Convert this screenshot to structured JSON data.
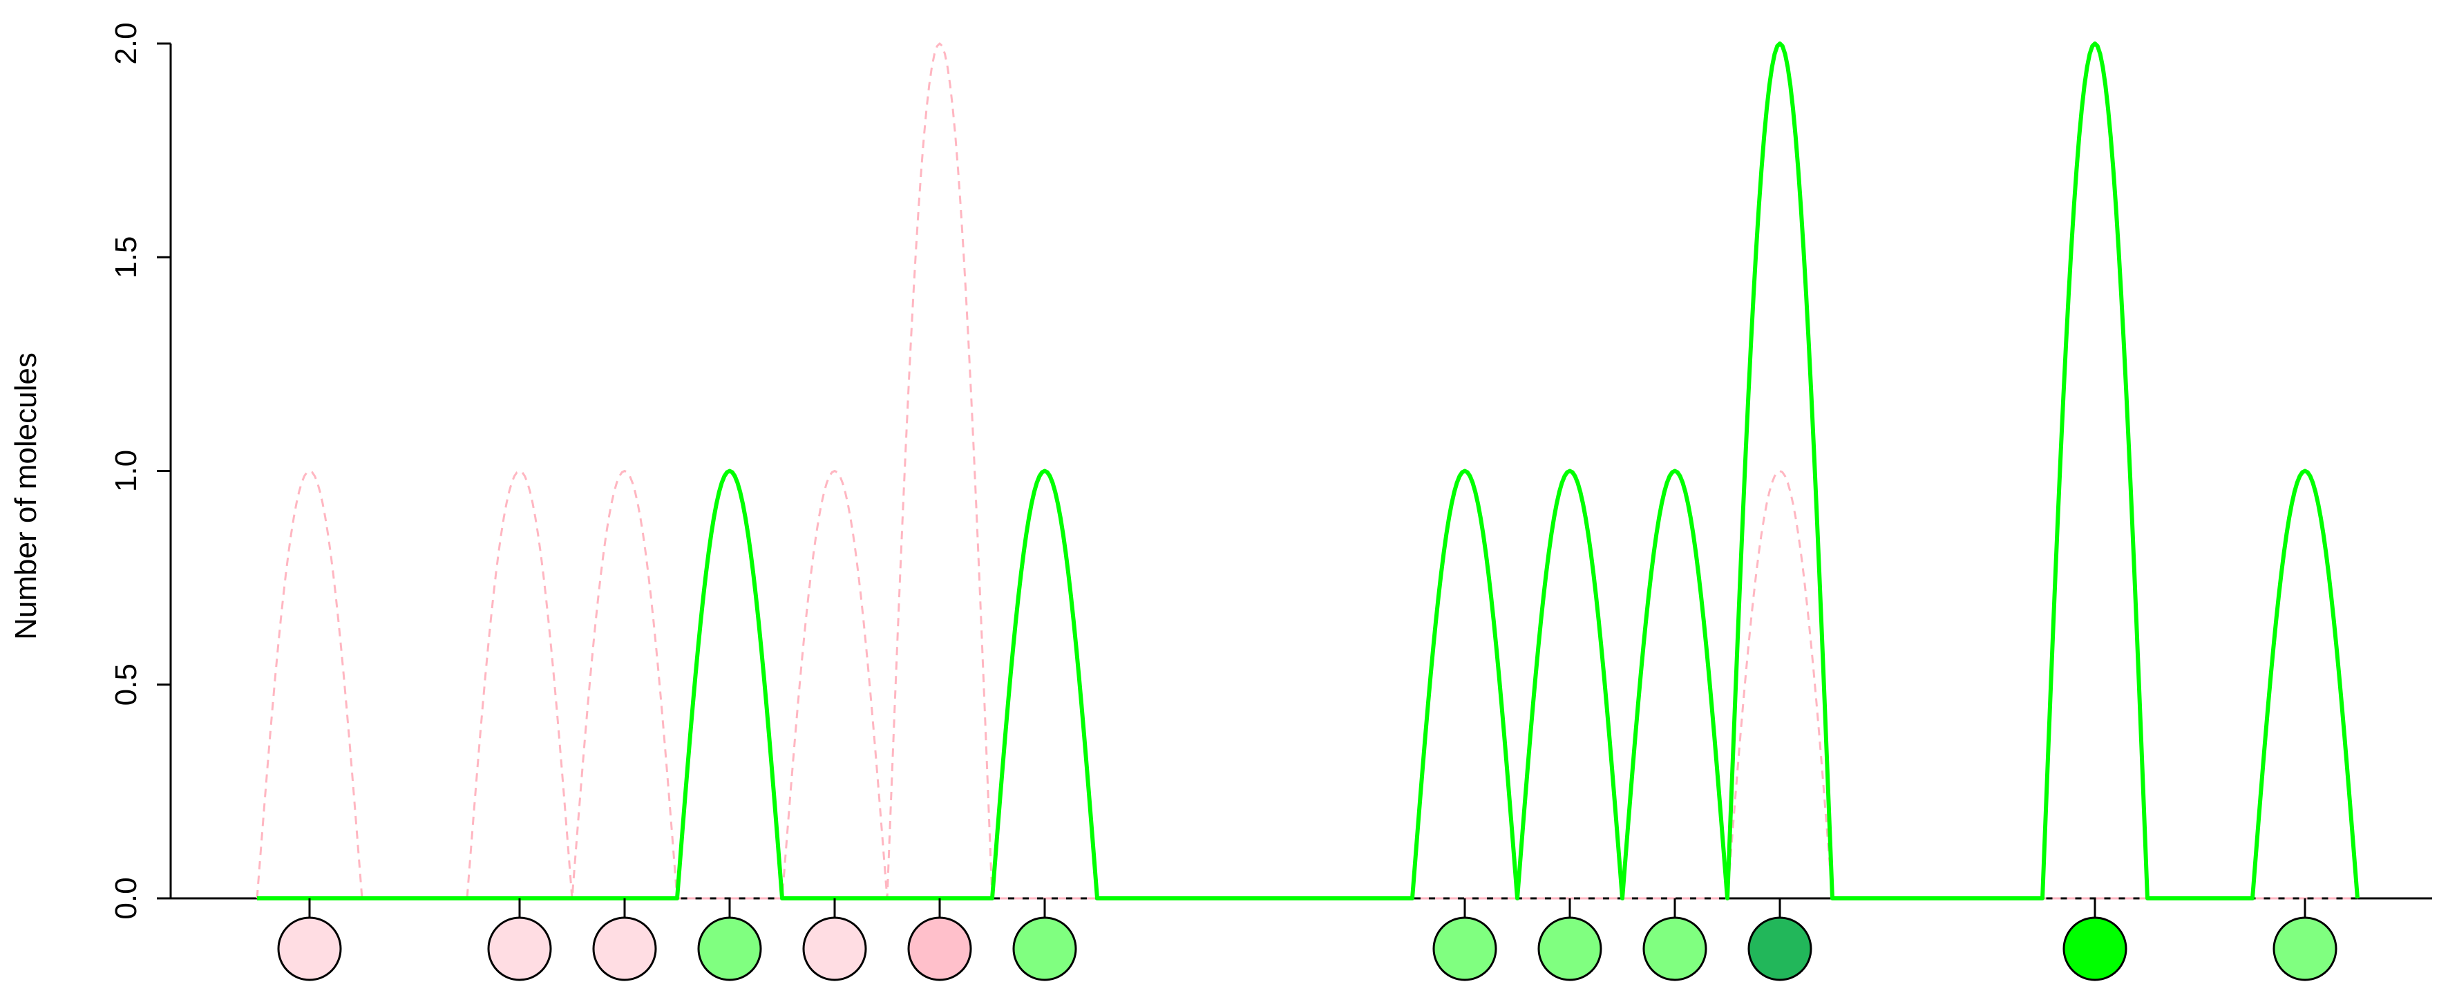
{
  "chart_data": {
    "type": "line",
    "title": "",
    "xlabel": "",
    "ylabel": "Number of molecules",
    "ylim": [
      0,
      2
    ],
    "y_ticks": [
      "0.0",
      "0.5",
      "1.0",
      "1.5",
      "2.0"
    ],
    "xlim": [
      0.5,
      20.5
    ],
    "grid": false,
    "legend": "none",
    "positions": [
      1,
      3,
      4,
      5,
      6,
      7,
      8,
      12,
      13,
      14,
      15,
      18,
      20
    ],
    "series": [
      {
        "style": "solid",
        "color": "#00ff00",
        "values": [
          0,
          0,
          0,
          1,
          0,
          0,
          1,
          1,
          1,
          1,
          2,
          2,
          1
        ]
      },
      {
        "style": "dashed",
        "color": "#ffb6c1",
        "values": [
          1,
          1,
          1,
          0,
          1,
          2,
          0,
          0,
          0,
          0,
          1,
          0,
          0
        ]
      }
    ],
    "markers": [
      {
        "x": 1,
        "color": "#ffdde3"
      },
      {
        "x": 3,
        "color": "#ffdde3"
      },
      {
        "x": 4,
        "color": "#ffdde3"
      },
      {
        "x": 5,
        "color": "#80ff80"
      },
      {
        "x": 6,
        "color": "#ffdde3"
      },
      {
        "x": 7,
        "color": "#ffc0cb"
      },
      {
        "x": 8,
        "color": "#80ff80"
      },
      {
        "x": 12,
        "color": "#80ff80"
      },
      {
        "x": 13,
        "color": "#80ff80"
      },
      {
        "x": 14,
        "color": "#80ff80"
      },
      {
        "x": 15,
        "color": "#22b75a"
      },
      {
        "x": 18,
        "color": "#00ff00"
      },
      {
        "x": 20,
        "color": "#80ff80"
      }
    ]
  }
}
